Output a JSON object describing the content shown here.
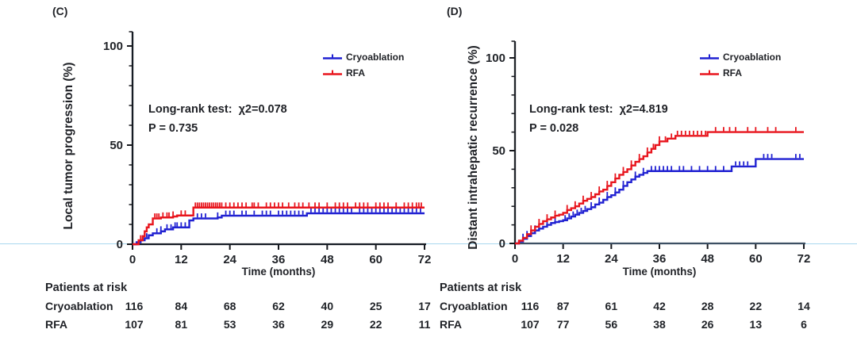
{
  "chart_data": [
    {
      "type": "line",
      "panel_tag": "(C)",
      "ylabel": "Local tumor progression (%)",
      "xlabel": "Time (months)",
      "annotation_line1": "Long-rank test:  χ2=0.078",
      "annotation_line2": "P = 0.735",
      "xlim": [
        0,
        72
      ],
      "ylim": [
        0,
        100
      ],
      "xticks": [
        0,
        12,
        24,
        36,
        48,
        60,
        72
      ],
      "yticks": [
        0,
        50,
        100
      ],
      "ytick_minor_step": 10,
      "grid": false,
      "legend_position": "top-right",
      "series": [
        {
          "name": "Cryoablation",
          "color": "#2122d2",
          "steps": [
            [
              0,
              0
            ],
            [
              1,
              1
            ],
            [
              2,
              2
            ],
            [
              3,
              3
            ],
            [
              4,
              4.5
            ],
            [
              5,
              5.5
            ],
            [
              7,
              6.5
            ],
            [
              8,
              7.5
            ],
            [
              10,
              8.5
            ],
            [
              14,
              12
            ],
            [
              15,
              13
            ],
            [
              21,
              13.5
            ],
            [
              22,
              14.4
            ],
            [
              43,
              15.6
            ],
            [
              72,
              15.6
            ]
          ],
          "censors": [
            2.5,
            3.5,
            6,
            7,
            8.5,
            9.5,
            10.5,
            11,
            12,
            13,
            16,
            17,
            18,
            21,
            23,
            24,
            25,
            27,
            28,
            30,
            32,
            33,
            34,
            36,
            37,
            38,
            39,
            40,
            41,
            42,
            44,
            45,
            46,
            47,
            48,
            49,
            50,
            51,
            52,
            53,
            54,
            56,
            57,
            58,
            59,
            60,
            61,
            62,
            63,
            64,
            65,
            66,
            67,
            68,
            69,
            70,
            71
          ]
        },
        {
          "name": "RFA",
          "color": "#e8151d",
          "steps": [
            [
              0,
              0
            ],
            [
              1.5,
              2
            ],
            [
              2.5,
              4
            ],
            [
              3,
              6.5
            ],
            [
              3.5,
              8.5
            ],
            [
              4,
              10
            ],
            [
              5,
              13
            ],
            [
              7,
              13.5
            ],
            [
              10,
              14
            ],
            [
              11,
              14.5
            ],
            [
              15,
              18.5
            ],
            [
              72,
              18.5
            ]
          ],
          "censors": [
            2,
            5.5,
            6,
            6.5,
            7.5,
            8.5,
            9,
            10,
            12,
            13,
            15.5,
            16,
            16.5,
            17,
            17.5,
            18,
            18.5,
            19,
            19.5,
            20,
            20.5,
            21,
            21.5,
            22,
            23,
            24,
            25,
            26,
            27,
            28,
            29.5,
            30,
            31,
            33,
            34,
            35,
            36,
            37,
            38.5,
            40,
            41,
            42,
            43.5,
            45,
            46,
            48,
            50,
            51,
            52,
            53,
            55,
            56,
            57,
            58,
            60,
            61,
            62,
            63,
            65,
            67,
            68,
            69,
            70,
            70.6,
            71.2
          ]
        }
      ],
      "at_risk": {
        "title": "Patients at risk",
        "time_points": [
          0,
          12,
          24,
          36,
          48,
          60,
          72
        ],
        "rows": [
          {
            "label": "Cryoablation",
            "counts": [
              116,
              84,
              68,
              62,
              40,
              25,
              17
            ]
          },
          {
            "label": "RFA",
            "counts": [
              107,
              81,
              53,
              36,
              29,
              22,
              11
            ]
          }
        ]
      }
    },
    {
      "type": "line",
      "panel_tag": "(D)",
      "ylabel": "Distant intrahepatic recurrence (%)",
      "xlabel": "Time (months)",
      "annotation_line1": "Long-rank test:  χ2=4.819",
      "annotation_line2": "P = 0.028",
      "xlim": [
        0,
        72
      ],
      "ylim": [
        0,
        100
      ],
      "xticks": [
        0,
        12,
        24,
        36,
        48,
        60,
        72
      ],
      "yticks": [
        0,
        50,
        100
      ],
      "ytick_minor_step": 10,
      "grid": false,
      "legend_position": "top-right",
      "series": [
        {
          "name": "Cryoablation",
          "color": "#2122d2",
          "steps": [
            [
              0,
              0
            ],
            [
              1,
              1
            ],
            [
              2,
              2.5
            ],
            [
              3,
              4
            ],
            [
              4,
              5.5
            ],
            [
              5,
              7
            ],
            [
              6,
              8
            ],
            [
              7,
              9
            ],
            [
              8,
              10
            ],
            [
              9,
              11
            ],
            [
              10,
              11.5
            ],
            [
              11,
              12
            ],
            [
              12,
              12.5
            ],
            [
              13,
              13.5
            ],
            [
              14,
              14.5
            ],
            [
              15,
              15.5
            ],
            [
              16,
              16.5
            ],
            [
              17,
              17.5
            ],
            [
              18,
              18.5
            ],
            [
              19,
              19.5
            ],
            [
              20,
              21
            ],
            [
              21,
              22
            ],
            [
              22,
              23.5
            ],
            [
              23,
              25
            ],
            [
              24,
              26
            ],
            [
              25,
              27.5
            ],
            [
              26,
              29
            ],
            [
              27,
              31
            ],
            [
              28,
              33
            ],
            [
              29,
              34.5
            ],
            [
              30,
              36
            ],
            [
              31,
              37
            ],
            [
              32,
              38
            ],
            [
              33,
              39
            ],
            [
              54,
              41.5
            ],
            [
              60,
              45.5
            ],
            [
              72,
              45.5
            ]
          ],
          "censors": [
            2,
            3,
            5,
            8,
            10,
            12.5,
            13.5,
            14.5,
            15.5,
            16.5,
            17.5,
            19,
            21,
            23,
            25,
            27,
            30,
            32,
            34,
            35,
            36,
            37,
            38,
            39,
            41,
            42,
            44,
            46,
            48,
            50,
            52,
            55,
            56,
            57,
            58,
            62,
            63,
            64,
            70,
            71
          ]
        },
        {
          "name": "RFA",
          "color": "#e8151d",
          "steps": [
            [
              0,
              0
            ],
            [
              1,
              1.5
            ],
            [
              2,
              3
            ],
            [
              3,
              5
            ],
            [
              4,
              7
            ],
            [
              5,
              9
            ],
            [
              6,
              10.5
            ],
            [
              7,
              12
            ],
            [
              8,
              13
            ],
            [
              9,
              14
            ],
            [
              10,
              15
            ],
            [
              11,
              15.5
            ],
            [
              12,
              16.5
            ],
            [
              13,
              18
            ],
            [
              14,
              19
            ],
            [
              15,
              20
            ],
            [
              16,
              21.5
            ],
            [
              17,
              23
            ],
            [
              18,
              24
            ],
            [
              19,
              25
            ],
            [
              20,
              26.5
            ],
            [
              21,
              28
            ],
            [
              22,
              29
            ],
            [
              23,
              31
            ],
            [
              24,
              33
            ],
            [
              25,
              35
            ],
            [
              26,
              37
            ],
            [
              27,
              38.5
            ],
            [
              28,
              40
            ],
            [
              29,
              42
            ],
            [
              30,
              44
            ],
            [
              31,
              45.5
            ],
            [
              32,
              47
            ],
            [
              33,
              49
            ],
            [
              34,
              51
            ],
            [
              35,
              53
            ],
            [
              36,
              55
            ],
            [
              38,
              56.5
            ],
            [
              40,
              58
            ],
            [
              48,
              60
            ],
            [
              72,
              60
            ]
          ],
          "censors": [
            4,
            6,
            8,
            10,
            13,
            15,
            17,
            19,
            21,
            23,
            25,
            27,
            29,
            31,
            33,
            34.5,
            36,
            37.5,
            39,
            40.5,
            41.5,
            42.5,
            43.5,
            44.5,
            45.5,
            46.5,
            47.5,
            50,
            52,
            53.5,
            55,
            58,
            60,
            63,
            65,
            70
          ]
        }
      ],
      "at_risk": {
        "title": "Patients at risk",
        "time_points": [
          0,
          12,
          24,
          36,
          48,
          60,
          72
        ],
        "rows": [
          {
            "label": "Cryoablation",
            "counts": [
              116,
              87,
              61,
              42,
              28,
              22,
              14
            ]
          },
          {
            "label": "RFA",
            "counts": [
              107,
              77,
              56,
              38,
              26,
              13,
              6
            ]
          }
        ]
      }
    }
  ]
}
